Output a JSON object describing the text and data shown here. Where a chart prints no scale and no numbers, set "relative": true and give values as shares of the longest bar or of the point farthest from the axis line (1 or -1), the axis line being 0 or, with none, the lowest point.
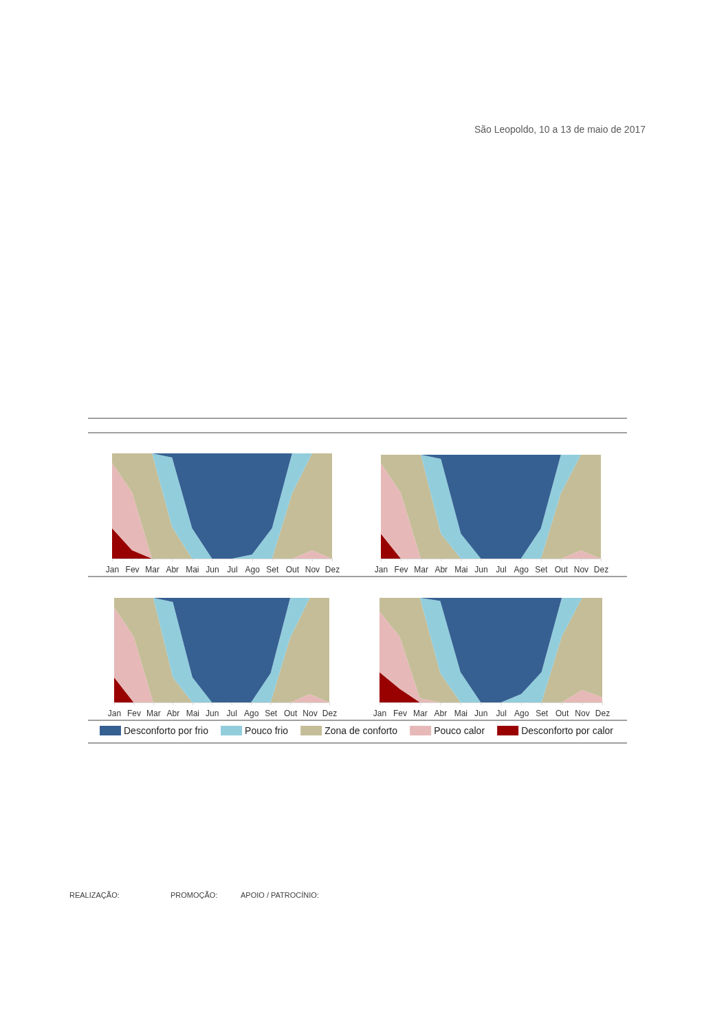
{
  "chart_data": [
    {
      "type": "area",
      "stacked": true,
      "relative": true,
      "annotations": [
        "São Leopoldo, 10 a 13 de maio de 2017"
      ],
      "categories": [
        "Jan",
        "Fev",
        "Mar",
        "Abr",
        "Mai",
        "Jun",
        "Jul",
        "Ago",
        "Set",
        "Out",
        "Nov",
        "Dez"
      ],
      "series": [
        {
          "color": "#990000",
          "values": [
            0.29,
            0.08,
            0,
            null,
            null,
            null,
            null,
            null,
            null,
            null,
            null,
            null
          ]
        },
        {
          "color": "#e6b9b8",
          "values": [
            0.62,
            0.55,
            0,
            null,
            null,
            null,
            null,
            null,
            null,
            0,
            0.08,
            0
          ]
        },
        {
          "color": "#c4bd97",
          "values": [
            0.09,
            0.37,
            1,
            0.3,
            0,
            null,
            null,
            null,
            0,
            0.62,
            0.92,
            1
          ]
        },
        {
          "color": "#92cddc",
          "values": [
            null,
            null,
            0,
            0.66,
            0.29,
            0,
            0,
            0.04,
            0.29,
            0.38,
            0,
            null
          ]
        },
        {
          "color": "#366092",
          "values": [
            null,
            null,
            0,
            0.04,
            0.71,
            1,
            1,
            0.96,
            0.71,
            0,
            null,
            null
          ]
        }
      ]
    },
    {
      "type": "area",
      "stacked": true,
      "relative": true,
      "categories": [
        "Jan",
        "Fev",
        "Mar",
        "Abr",
        "Mai",
        "Jun",
        "Jul",
        "Ago",
        "Set",
        "Out",
        "Nov",
        "Dez"
      ],
      "series": [
        {
          "color": "#990000",
          "values": [
            0.24,
            0,
            null,
            null,
            null,
            null,
            null,
            null,
            null,
            null,
            null,
            null
          ]
        },
        {
          "color": "#e6b9b8",
          "values": [
            0.68,
            0.63,
            0,
            null,
            null,
            null,
            null,
            null,
            null,
            0,
            0.08,
            0
          ]
        },
        {
          "color": "#c4bd97",
          "values": [
            0.08,
            0.37,
            1,
            0.24,
            0,
            null,
            null,
            null,
            0,
            0.63,
            0.92,
            1
          ]
        },
        {
          "color": "#92cddc",
          "values": [
            null,
            null,
            0,
            0.72,
            0.24,
            0,
            null,
            0,
            0.29,
            0.37,
            0,
            null
          ]
        },
        {
          "color": "#366092",
          "values": [
            null,
            null,
            0,
            0.04,
            0.76,
            1,
            1,
            1,
            0.71,
            0,
            null,
            null
          ]
        }
      ]
    },
    {
      "type": "area",
      "stacked": true,
      "relative": true,
      "categories": [
        "Jan",
        "Fev",
        "Mar",
        "Abr",
        "Mai",
        "Jun",
        "Jul",
        "Ago",
        "Set",
        "Out",
        "Nov",
        "Dez"
      ],
      "series": [
        {
          "color": "#990000",
          "values": [
            0.24,
            0,
            null,
            null,
            null,
            null,
            null,
            null,
            null,
            null,
            null,
            null
          ]
        },
        {
          "color": "#e6b9b8",
          "values": [
            0.67,
            0.63,
            0,
            null,
            null,
            null,
            null,
            null,
            null,
            0,
            0.08,
            0
          ]
        },
        {
          "color": "#c4bd97",
          "values": [
            0.09,
            0.37,
            1,
            0.24,
            0,
            null,
            null,
            null,
            0,
            0.62,
            0.92,
            1
          ]
        },
        {
          "color": "#92cddc",
          "values": [
            null,
            null,
            0,
            0.72,
            0.24,
            0,
            null,
            0,
            0.28,
            0.38,
            0,
            null
          ]
        },
        {
          "color": "#366092",
          "values": [
            null,
            null,
            0,
            0.04,
            0.76,
            1,
            1,
            1,
            0.72,
            0,
            null,
            null
          ]
        }
      ]
    },
    {
      "type": "area",
      "stacked": true,
      "relative": true,
      "legend": "bottom",
      "annotations": [
        "REALIZAÇÃO:",
        "PROMOÇÃO:",
        "APOIO / PATROCÍNIO:"
      ],
      "categories": [
        "Jan",
        "Fev",
        "Mar",
        "Abr",
        "Mai",
        "Jun",
        "Jul",
        "Ago",
        "Set",
        "Out",
        "Nov",
        "Dez"
      ],
      "series": [
        {
          "name": "Desconforto por calor",
          "color": "#990000",
          "values": [
            0.29,
            0.13,
            0,
            null,
            null,
            null,
            null,
            null,
            null,
            null,
            null,
            null
          ]
        },
        {
          "name": "Pouco calor",
          "color": "#e6b9b8",
          "values": [
            0.58,
            0.5,
            0.04,
            0,
            null,
            null,
            null,
            null,
            null,
            0,
            0.12,
            0.05
          ]
        },
        {
          "name": "Zona de conforto",
          "color": "#c4bd97",
          "values": [
            0.13,
            0.37,
            0.96,
            0.28,
            0,
            null,
            null,
            null,
            0,
            0.63,
            0.88,
            0.95
          ]
        },
        {
          "name": "Pouco frio",
          "color": "#92cddc",
          "values": [
            null,
            null,
            0,
            0.69,
            0.29,
            0,
            0,
            0.08,
            0.29,
            0.37,
            0,
            null
          ]
        },
        {
          "name": "Desconforto por frio",
          "color": "#366092",
          "values": [
            null,
            null,
            0,
            0.03,
            0.71,
            1,
            1,
            0.92,
            0.71,
            0,
            null,
            null
          ]
        }
      ]
    }
  ]
}
